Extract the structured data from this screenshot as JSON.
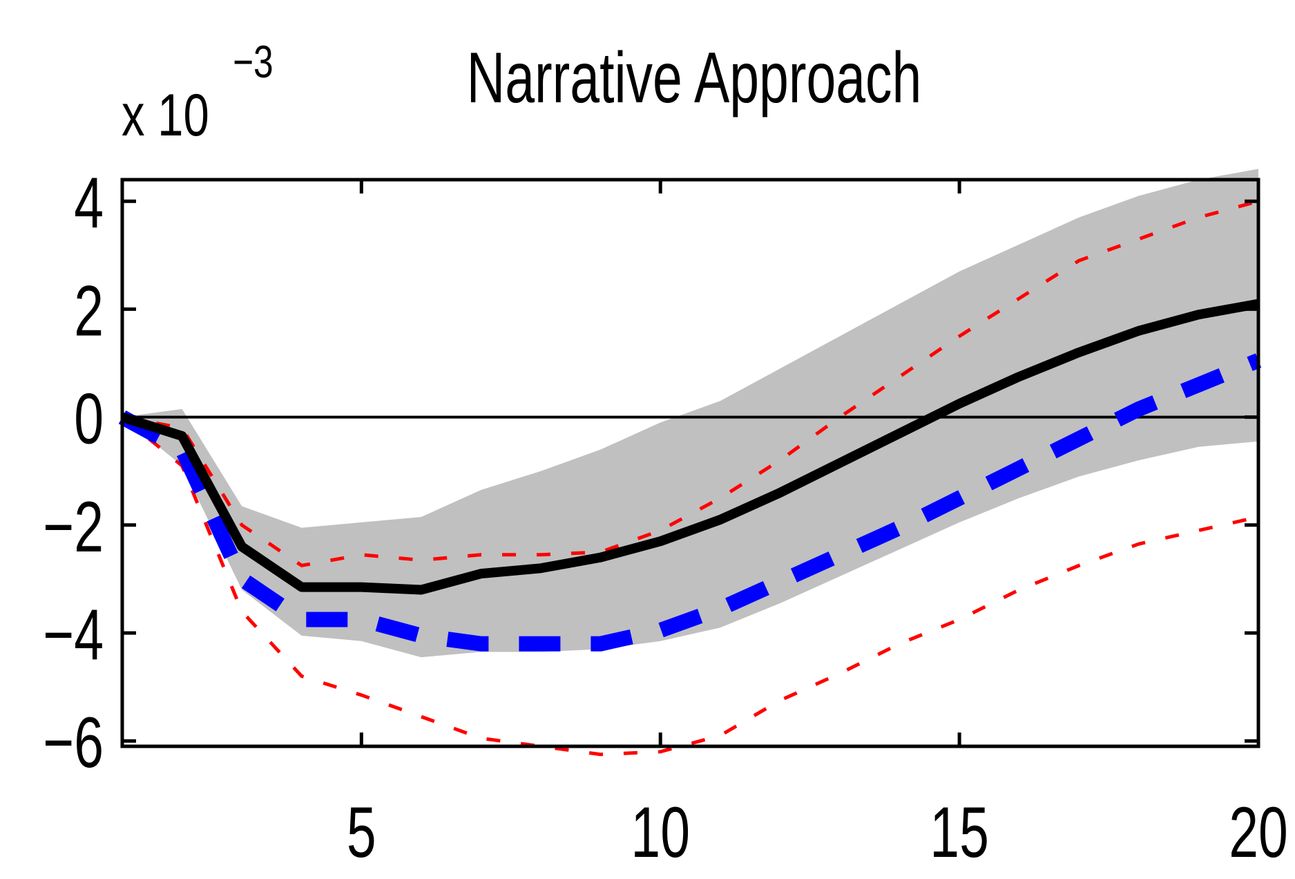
{
  "chart_data": {
    "type": "line",
    "title": "Narrative Approach",
    "xlabel": "",
    "ylabel": "",
    "y_scale_label": {
      "base": "x 10",
      "exponent": "−3"
    },
    "xlim": [
      1,
      20
    ],
    "ylim": [
      -6.1,
      4.4
    ],
    "x_ticks": [
      5,
      10,
      15,
      20
    ],
    "x_tick_labels": [
      "5",
      "10",
      "15",
      "20"
    ],
    "y_ticks": [
      4,
      2,
      0,
      -2,
      -4,
      -6
    ],
    "y_tick_labels": [
      "4",
      "2",
      "0",
      "−2",
      "−4",
      "−6"
    ],
    "grid": false,
    "legend": "none",
    "x": [
      1,
      2,
      3,
      4,
      5,
      6,
      7,
      8,
      9,
      10,
      11,
      12,
      13,
      14,
      15,
      16,
      17,
      18,
      19,
      20
    ],
    "series": [
      {
        "style": "shaded band",
        "color": "#c0c0c0",
        "upper": [
          0.0,
          0.15,
          -1.65,
          -2.05,
          -1.95,
          -1.85,
          -1.35,
          -1.0,
          -0.6,
          -0.1,
          0.3,
          0.9,
          1.5,
          2.1,
          2.7,
          3.2,
          3.7,
          4.1,
          4.4,
          4.6
        ],
        "lower": [
          0.0,
          -0.9,
          -3.2,
          -4.05,
          -4.15,
          -4.45,
          -4.35,
          -4.35,
          -4.3,
          -4.15,
          -3.9,
          -3.45,
          -2.95,
          -2.45,
          -1.95,
          -1.5,
          -1.1,
          -0.8,
          -0.55,
          -0.45
        ]
      },
      {
        "style": "solid",
        "color": "#000000",
        "values": [
          0.0,
          -0.35,
          -2.4,
          -3.15,
          -3.15,
          -3.2,
          -2.9,
          -2.8,
          -2.6,
          -2.3,
          -1.9,
          -1.4,
          -0.85,
          -0.3,
          0.25,
          0.75,
          1.2,
          1.6,
          1.9,
          2.1
        ]
      },
      {
        "style": "dashed",
        "color": "#0000ff",
        "values": [
          0.0,
          -0.6,
          -3.0,
          -3.75,
          -3.75,
          -4.05,
          -4.2,
          -4.2,
          -4.2,
          -3.95,
          -3.55,
          -3.05,
          -2.55,
          -2.05,
          -1.5,
          -0.95,
          -0.4,
          0.15,
          0.6,
          1.05
        ]
      },
      {
        "style": "dotted",
        "color": "#ff0000",
        "values": [
          0.0,
          -0.2,
          -2.0,
          -2.75,
          -2.55,
          -2.65,
          -2.55,
          -2.55,
          -2.5,
          -2.1,
          -1.5,
          -0.8,
          0.0,
          0.75,
          1.5,
          2.2,
          2.9,
          3.3,
          3.7,
          4.0
        ]
      },
      {
        "style": "dotted",
        "color": "#ff0000",
        "values": [
          0.0,
          -0.9,
          -3.6,
          -4.8,
          -5.15,
          -5.55,
          -5.95,
          -6.1,
          -6.25,
          -6.2,
          -5.9,
          -5.25,
          -4.75,
          -4.2,
          -3.75,
          -3.2,
          -2.75,
          -2.35,
          -2.1,
          -1.85
        ]
      }
    ]
  }
}
